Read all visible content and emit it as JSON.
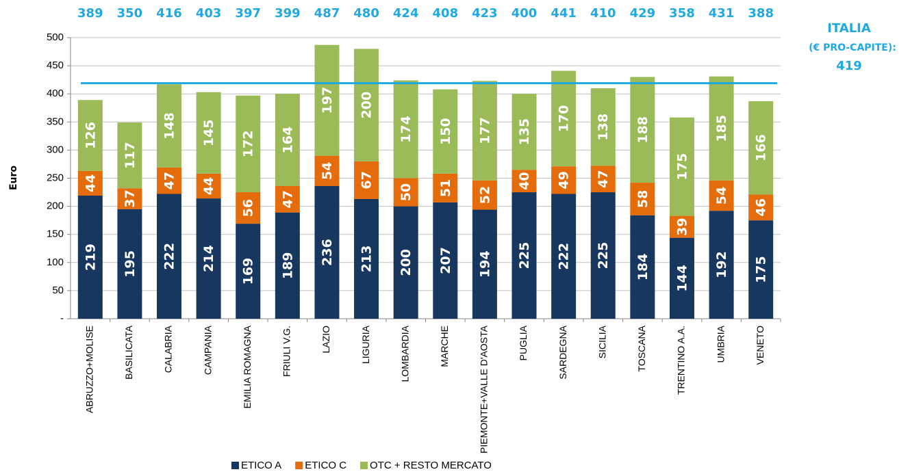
{
  "chart_data": {
    "type": "stacked_bar",
    "y_label": "Euro",
    "categories": [
      "ABRUZZO+MOLISE",
      "BASILICATA",
      "CALABRIA",
      "CAMPANIA",
      "EMILIA ROMAGNA",
      "FRIULI V.G.",
      "LAZIO",
      "LIGURIA",
      "LOMBARDIA",
      "MARCHE",
      "PIEMONTE+VALLE D'AOSTA",
      "PUGLIA",
      "SARDEGNA",
      "SICILIA",
      "TOSCANA",
      "TRENTINO A.A.",
      "UMBRIA",
      "VENETO"
    ],
    "series": [
      {
        "name": "ETICO A",
        "color": "#17375e",
        "values": [
          219,
          195,
          222,
          214,
          169,
          189,
          236,
          213,
          200,
          207,
          194,
          225,
          222,
          225,
          184,
          144,
          192,
          175
        ]
      },
      {
        "name": "ETICO C",
        "color": "#e46c0a",
        "values": [
          44,
          37,
          47,
          44,
          56,
          47,
          54,
          67,
          50,
          51,
          52,
          40,
          49,
          47,
          58,
          39,
          54,
          46
        ]
      },
      {
        "name": "OTC + RESTO MERCATO",
        "color": "#9bbb59",
        "values": [
          126,
          117,
          148,
          145,
          172,
          164,
          197,
          200,
          174,
          150,
          177,
          135,
          170,
          138,
          188,
          175,
          185,
          166
        ]
      }
    ],
    "totals": [
      389,
      350,
      416,
      403,
      397,
      399,
      487,
      480,
      424,
      408,
      423,
      400,
      441,
      410,
      429,
      358,
      431,
      388
    ],
    "totals_color": "#1fa9e1",
    "reference": {
      "label": "ITALIA",
      "sublabel": "(€ PRO-CAPITE):",
      "value": 419,
      "color": "#1fa9e1"
    },
    "ylim": [
      0,
      500
    ],
    "yticks": [
      {
        "value": 0,
        "label": "-"
      },
      50,
      100,
      150,
      200,
      250,
      300,
      350,
      400,
      450,
      500
    ],
    "grid": true,
    "legend": "bottom"
  }
}
